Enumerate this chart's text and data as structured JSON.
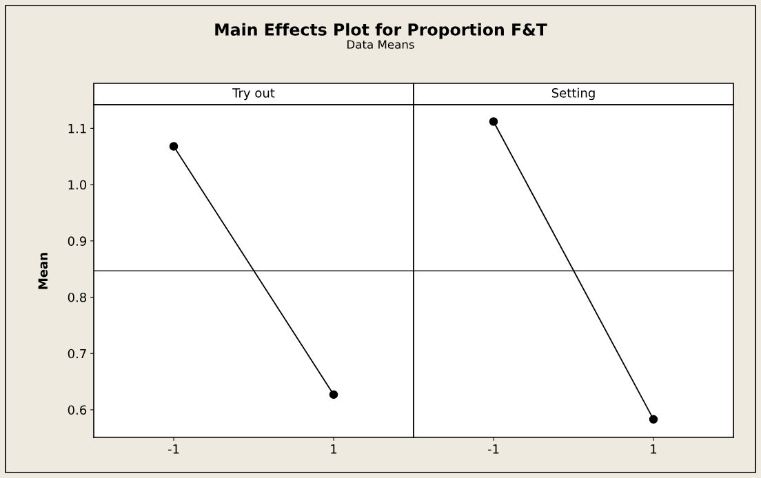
{
  "chart_data": [
    {
      "type": "line",
      "title": "Main Effects Plot for Proportion F&T",
      "subtitle": "Data Means",
      "ylabel": "Mean",
      "annotations": [
        "Try out"
      ],
      "categories": [
        "-1",
        "1"
      ],
      "series": [
        {
          "color": "#000000",
          "values": [
            1.068,
            0.627
          ]
        }
      ],
      "ylim": [
        0.551,
        1.142
      ],
      "yticks": [
        0.6,
        0.7,
        0.8,
        0.9,
        {
          "value": 1,
          "label": "1.0"
        },
        1.1
      ],
      "ref_lines": [
        {
          "axis": "y",
          "value": 0.847,
          "color": "#000000"
        }
      ],
      "marker": "circle",
      "line_style": "solid",
      "grid": false,
      "legend": false
    },
    {
      "type": "line",
      "annotations": [
        "Setting"
      ],
      "categories": [
        "-1",
        "1"
      ],
      "series": [
        {
          "color": "#000000",
          "values": [
            1.112,
            0.583
          ]
        }
      ],
      "ylim": [
        0.551,
        1.142
      ],
      "yticks": [
        0.6,
        0.7,
        0.8,
        0.9,
        1,
        1.1
      ],
      "ref_lines": [
        {
          "axis": "y",
          "value": 0.847,
          "color": "#000000"
        }
      ],
      "marker": "circle",
      "line_style": "solid",
      "grid": false,
      "legend": false,
      "tick_labels": "x"
    }
  ]
}
